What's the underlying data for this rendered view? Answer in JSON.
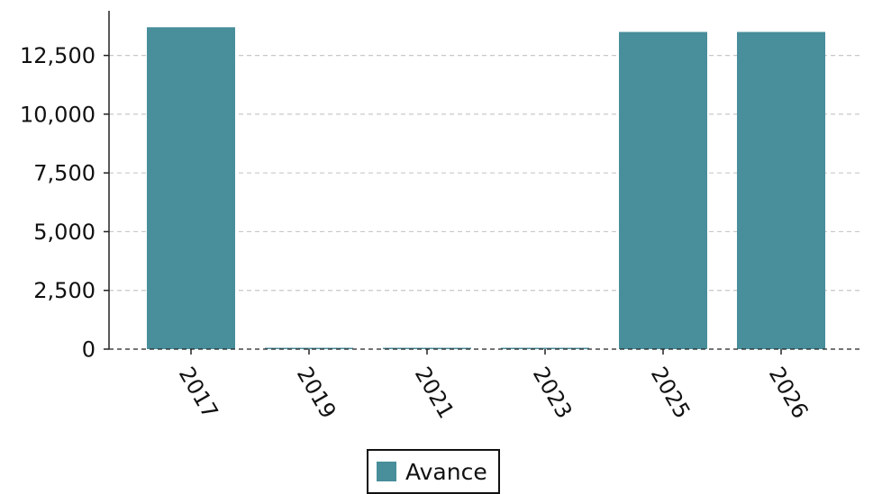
{
  "chart_data": {
    "type": "bar",
    "categories": [
      "2017",
      "2019",
      "2021",
      "2023",
      "2025",
      "2026"
    ],
    "series": [
      {
        "name": "Avance",
        "values": [
          13700,
          0,
          0,
          0,
          13500,
          13500
        ],
        "color": "#488e9b"
      }
    ],
    "y_ticks": [
      "0",
      "2,500",
      "5,000",
      "7,500",
      "10,000",
      "12,500"
    ],
    "y_tick_values": [
      0,
      2500,
      5000,
      7500,
      10000,
      12500
    ],
    "ylim": [
      0,
      14400
    ],
    "grid": "y-dashed",
    "legend_position": "bottom-center",
    "title": "",
    "xlabel": "",
    "ylabel": ""
  },
  "legend": {
    "label": "Avance",
    "color": "#488e9b"
  }
}
